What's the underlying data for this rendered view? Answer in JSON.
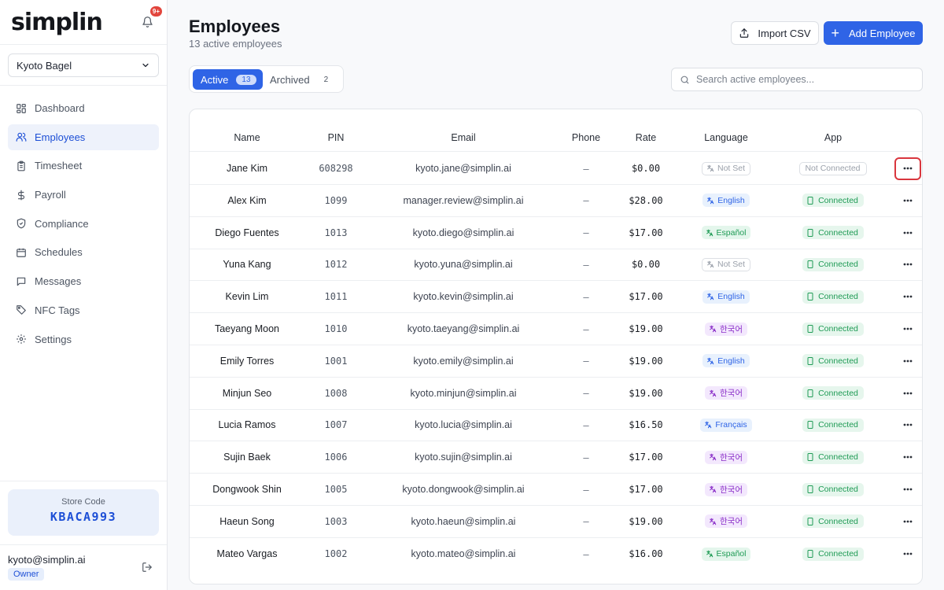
{
  "sidebar": {
    "logo": "simplin",
    "notification_badge": "9+",
    "store_selector": "Kyoto Bagel",
    "nav": [
      {
        "label": "Dashboard",
        "icon": "dashboard-icon"
      },
      {
        "label": "Employees",
        "icon": "users-icon",
        "active": true
      },
      {
        "label": "Timesheet",
        "icon": "clipboard-icon"
      },
      {
        "label": "Payroll",
        "icon": "dollar-icon"
      },
      {
        "label": "Compliance",
        "icon": "shield-icon"
      },
      {
        "label": "Schedules",
        "icon": "calendar-icon"
      },
      {
        "label": "Messages",
        "icon": "message-icon"
      },
      {
        "label": "NFC Tags",
        "icon": "tag-icon"
      },
      {
        "label": "Settings",
        "icon": "gear-icon"
      }
    ],
    "store_code_label": "Store Code",
    "store_code": "KBACA993",
    "user_email": "kyoto@simplin.ai",
    "user_role": "Owner"
  },
  "header": {
    "title": "Employees",
    "subtitle": "13 active employees",
    "import_label": "Import CSV",
    "add_label": "Add Employee"
  },
  "tabs": {
    "active_label": "Active",
    "active_count": "13",
    "archived_label": "Archived",
    "archived_count": "2"
  },
  "search": {
    "placeholder": "Search active employees..."
  },
  "table": {
    "columns": [
      "Name",
      "PIN",
      "Email",
      "Phone",
      "Rate",
      "Language",
      "App"
    ],
    "rows": [
      {
        "name": "Jane Kim",
        "pin": "608298",
        "email": "kyoto.jane@simplin.ai",
        "phone": "–",
        "rate": "$0.00",
        "language": "Not Set",
        "lang_type": "ns",
        "app": "Not Connected",
        "app_type": "nc",
        "highlight": true
      },
      {
        "name": "Alex Kim",
        "pin": "1099",
        "email": "manager.review@simplin.ai",
        "phone": "–",
        "rate": "$28.00",
        "language": "English",
        "lang_type": "en",
        "app": "Connected",
        "app_type": "conn"
      },
      {
        "name": "Diego Fuentes",
        "pin": "1013",
        "email": "kyoto.diego@simplin.ai",
        "phone": "–",
        "rate": "$17.00",
        "language": "Español",
        "lang_type": "es",
        "app": "Connected",
        "app_type": "conn"
      },
      {
        "name": "Yuna Kang",
        "pin": "1012",
        "email": "kyoto.yuna@simplin.ai",
        "phone": "–",
        "rate": "$0.00",
        "language": "Not Set",
        "lang_type": "ns",
        "app": "Connected",
        "app_type": "conn"
      },
      {
        "name": "Kevin Lim",
        "pin": "1011",
        "email": "kyoto.kevin@simplin.ai",
        "phone": "–",
        "rate": "$17.00",
        "language": "English",
        "lang_type": "en",
        "app": "Connected",
        "app_type": "conn"
      },
      {
        "name": "Taeyang Moon",
        "pin": "1010",
        "email": "kyoto.taeyang@simplin.ai",
        "phone": "–",
        "rate": "$19.00",
        "language": "한국어",
        "lang_type": "ko",
        "app": "Connected",
        "app_type": "conn"
      },
      {
        "name": "Emily Torres",
        "pin": "1001",
        "email": "kyoto.emily@simplin.ai",
        "phone": "–",
        "rate": "$19.00",
        "language": "English",
        "lang_type": "en",
        "app": "Connected",
        "app_type": "conn"
      },
      {
        "name": "Minjun Seo",
        "pin": "1008",
        "email": "kyoto.minjun@simplin.ai",
        "phone": "–",
        "rate": "$19.00",
        "language": "한국어",
        "lang_type": "ko",
        "app": "Connected",
        "app_type": "conn"
      },
      {
        "name": "Lucia Ramos",
        "pin": "1007",
        "email": "kyoto.lucia@simplin.ai",
        "phone": "–",
        "rate": "$16.50",
        "language": "Français",
        "lang_type": "fr",
        "app": "Connected",
        "app_type": "conn"
      },
      {
        "name": "Sujin Baek",
        "pin": "1006",
        "email": "kyoto.sujin@simplin.ai",
        "phone": "–",
        "rate": "$17.00",
        "language": "한국어",
        "lang_type": "ko",
        "app": "Connected",
        "app_type": "conn"
      },
      {
        "name": "Dongwook Shin",
        "pin": "1005",
        "email": "kyoto.dongwook@simplin.ai",
        "phone": "–",
        "rate": "$17.00",
        "language": "한국어",
        "lang_type": "ko",
        "app": "Connected",
        "app_type": "conn"
      },
      {
        "name": "Haeun Song",
        "pin": "1003",
        "email": "kyoto.haeun@simplin.ai",
        "phone": "–",
        "rate": "$19.00",
        "language": "한국어",
        "lang_type": "ko",
        "app": "Connected",
        "app_type": "conn"
      },
      {
        "name": "Mateo Vargas",
        "pin": "1002",
        "email": "kyoto.mateo@simplin.ai",
        "phone": "–",
        "rate": "$16.00",
        "language": "Español",
        "lang_type": "es",
        "app": "Connected",
        "app_type": "conn"
      }
    ]
  },
  "colors": {
    "accent": "#2f64e6",
    "connected": "#1f9b55",
    "highlight_border": "#d9363e"
  }
}
